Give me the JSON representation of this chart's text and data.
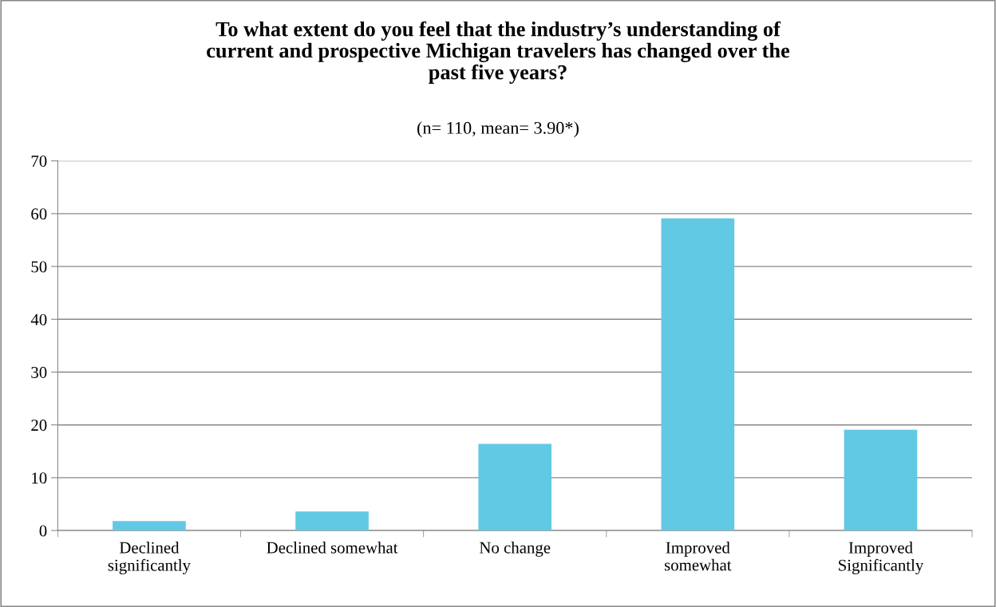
{
  "chart_data": {
    "type": "bar",
    "title": "To what extent do you feel that the industry’s understanding of\ncurrent and prospective Michigan travelers has changed over the\npast five years?",
    "subtitle": "(n= 110, mean= 3.90*)",
    "categories": [
      "Declined\nsignificantly",
      "Declined somewhat",
      "No change",
      "Improved\nsomewhat",
      "Improved\nSignificantly"
    ],
    "values": [
      1.8,
      3.6,
      16.4,
      59.1,
      19.1
    ],
    "color": "#62c9e4",
    "ylim": [
      0,
      70
    ],
    "yticks": [
      0,
      10,
      20,
      30,
      40,
      50,
      60,
      70
    ],
    "grid": "y",
    "legend": false
  }
}
